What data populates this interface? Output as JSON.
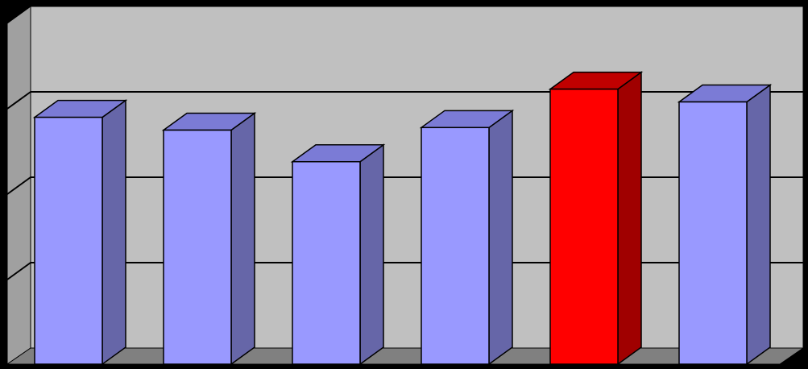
{
  "chart_data": {
    "type": "bar",
    "style": "3d-column",
    "categories": [
      "",
      "",
      "",
      "",
      "",
      ""
    ],
    "series": [
      {
        "values": [
          2.9,
          2.75,
          2.38,
          2.78,
          3.23,
          3.08
        ]
      }
    ],
    "highlight_index": 4,
    "ylim": [
      0,
      4
    ],
    "yticks": [
      0,
      1,
      2,
      3,
      4
    ],
    "grid": true,
    "tick_labels_visible": false,
    "legend": "none",
    "colors": {
      "background": "#000000",
      "wall": "#C0C0C0",
      "floor": "#808080",
      "grid": "#000000",
      "bar_front": "#9999FF",
      "bar_top": "#7B7BD6",
      "bar_side": "#6666A8",
      "highlight_front": "#FF0000",
      "highlight_top": "#C00000",
      "highlight_side": "#A00000"
    }
  }
}
